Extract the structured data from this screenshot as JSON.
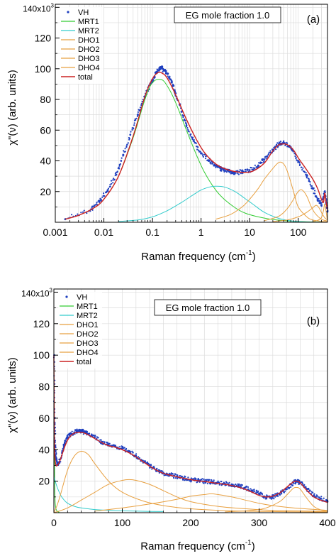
{
  "chart_data": [
    {
      "type": "scatter",
      "panel_label": "(a)",
      "annotation": "EG mole fraction 1.0",
      "xlabel": "Raman frequency (cm",
      "xlabel_sup": "-1",
      "xlabel_close": ")",
      "ylabel": "χ\"(ν) (arb. units)",
      "xscale": "log",
      "xlim": [
        0.001,
        400
      ],
      "ylim": [
        0,
        142000
      ],
      "xticks": [
        0.001,
        0.01,
        0.1,
        1,
        10,
        100
      ],
      "xtick_labels": [
        "0.001",
        "0.01",
        "0.1",
        "1",
        "10",
        "100"
      ],
      "yticks": [
        20000,
        40000,
        60000,
        80000,
        100000,
        120000
      ],
      "ytick_labels": [
        "20",
        "40",
        "60",
        "80",
        "100",
        "120"
      ],
      "ytop_label": "140x10",
      "ytop_sup": "3",
      "grid": true,
      "legend_position": "top-left",
      "legend": [
        "VH",
        "MRT1",
        "MRT2",
        "DHO1",
        "DHO2",
        "DHO3",
        "DHO4",
        "total"
      ],
      "series": [
        {
          "name": "VH",
          "marker": "dots",
          "color": "#1f3fbf",
          "x": [
            0.0016,
            0.0055,
            0.0082,
            0.012,
            0.018,
            0.025,
            0.035,
            0.05,
            0.07,
            0.09,
            0.11,
            0.13,
            0.15,
            0.17,
            0.2,
            0.25,
            0.3,
            0.4,
            0.5,
            0.7,
            1,
            1.5,
            2,
            2.5,
            3,
            4,
            5,
            7,
            10,
            15,
            20,
            30,
            40,
            50,
            70,
            100,
            150,
            200,
            250,
            300,
            350,
            380,
            400
          ],
          "y": [
            2000,
            8500,
            14000,
            21000,
            31000,
            44000,
            57000,
            70000,
            82000,
            90000,
            95000,
            99000,
            101000,
            99000,
            97000,
            91000,
            84000,
            72000,
            63000,
            53000,
            45000,
            40000,
            37000,
            35000,
            34000,
            33000,
            32000,
            33000,
            34000,
            37000,
            41000,
            47000,
            51000,
            52000,
            49000,
            40000,
            30000,
            22000,
            15000,
            11000,
            20000,
            13000,
            7000
          ]
        },
        {
          "name": "MRT1",
          "color": "#33cc33",
          "x": [
            0.0016,
            0.003,
            0.006,
            0.01,
            0.02,
            0.04,
            0.07,
            0.1,
            0.15,
            0.2,
            0.3,
            0.5,
            0.8,
            1.2,
            2,
            3,
            5,
            8,
            15,
            30,
            60,
            100,
            200,
            400
          ],
          "y": [
            2000,
            4500,
            9000,
            15000,
            30000,
            55000,
            80000,
            91000,
            93000,
            89000,
            78000,
            60000,
            44000,
            32000,
            21000,
            15000,
            9500,
            6000,
            3500,
            1800,
            900,
            500,
            200,
            100
          ]
        },
        {
          "name": "MRT2",
          "color": "#33cccc",
          "x": [
            0.02,
            0.05,
            0.1,
            0.2,
            0.4,
            0.7,
            1,
            1.5,
            2,
            3,
            5,
            8,
            12,
            20,
            40,
            80,
            150,
            400
          ],
          "y": [
            500,
            1500,
            3500,
            7500,
            13000,
            18000,
            21000,
            23000,
            23500,
            23000,
            20000,
            15500,
            11500,
            6500,
            2500,
            700,
            200,
            50
          ]
        },
        {
          "name": "DHO1",
          "color": "#e8a040",
          "x": [
            2,
            4,
            7,
            10,
            15,
            20,
            30,
            40,
            50,
            60,
            80,
            100,
            150,
            200,
            300,
            400
          ],
          "y": [
            2000,
            5000,
            10000,
            15000,
            22000,
            28000,
            35000,
            39000,
            38000,
            33000,
            20000,
            10000,
            3500,
            1500,
            600,
            300
          ]
        },
        {
          "name": "DHO2",
          "color": "#e8a040",
          "x": [
            20,
            40,
            60,
            80,
            100,
            120,
            150,
            180,
            220,
            300,
            400
          ],
          "y": [
            1000,
            4000,
            9000,
            15000,
            20000,
            21000,
            17000,
            11000,
            6000,
            2000,
            800
          ]
        },
        {
          "name": "DHO3",
          "color": "#e8a040",
          "x": [
            30,
            60,
            100,
            150,
            200,
            230,
            260,
            300,
            350,
            400
          ],
          "y": [
            500,
            1500,
            3500,
            6500,
            9500,
            11000,
            10000,
            6500,
            3000,
            1500
          ]
        },
        {
          "name": "DHO4",
          "color": "#e8a040",
          "x": [
            200,
            250,
            300,
            330,
            350,
            370,
            390,
            400
          ],
          "y": [
            500,
            1200,
            3000,
            7500,
            12000,
            8000,
            3000,
            1500
          ]
        },
        {
          "name": "total",
          "color": "#cc2222",
          "x": [
            0.0016,
            0.003,
            0.006,
            0.01,
            0.02,
            0.04,
            0.07,
            0.1,
            0.13,
            0.16,
            0.2,
            0.3,
            0.5,
            0.8,
            1.2,
            2,
            3,
            5,
            8,
            12,
            20,
            30,
            40,
            50,
            60,
            80,
            100,
            150,
            200,
            250,
            300,
            330,
            350,
            370,
            400
          ],
          "y": [
            2000,
            4500,
            9000,
            15000,
            30000,
            56000,
            82000,
            93500,
            97500,
            97000,
            94000,
            83000,
            67000,
            54000,
            45000,
            38000,
            35000,
            33000,
            32500,
            33500,
            38500,
            46500,
            50500,
            51000,
            50500,
            47000,
            42000,
            34000,
            28000,
            22000,
            15000,
            13000,
            19000,
            14000,
            8000
          ]
        }
      ]
    },
    {
      "type": "scatter",
      "panel_label": "(b)",
      "annotation": "EG mole fraction 1.0",
      "xlabel": "Raman frequency (cm",
      "xlabel_sup": "-1",
      "xlabel_close": ")",
      "ylabel": "χ\"(ν) (arb. units)",
      "xscale": "linear",
      "xlim": [
        0,
        400
      ],
      "ylim": [
        0,
        142000
      ],
      "xticks": [
        0,
        100,
        200,
        300,
        400
      ],
      "xtick_labels": [
        "0",
        "100",
        "200",
        "300",
        "400"
      ],
      "yticks": [
        20000,
        40000,
        60000,
        80000,
        100000,
        120000
      ],
      "ytick_labels": [
        "20",
        "40",
        "60",
        "80",
        "100",
        "120"
      ],
      "ytop_label": "140x10",
      "ytop_sup": "3",
      "grid": true,
      "legend_position": "top-left",
      "legend": [
        "VH",
        "MRT1",
        "MRT2",
        "DHO1",
        "DHO2",
        "DHO3",
        "DHO4",
        "total"
      ],
      "series": [
        {
          "name": "VH",
          "marker": "dots",
          "color": "#1f3fbf",
          "x": [
            0.5,
            1,
            2,
            3,
            5,
            8,
            12,
            16,
            20,
            25,
            30,
            35,
            40,
            45,
            50,
            60,
            70,
            80,
            90,
            100,
            110,
            120,
            130,
            140,
            150,
            160,
            170,
            180,
            190,
            200,
            210,
            220,
            230,
            240,
            250,
            260,
            270,
            280,
            290,
            300,
            310,
            320,
            330,
            340,
            350,
            355,
            360,
            370,
            380,
            390,
            400
          ],
          "y": [
            100000,
            60000,
            42000,
            35000,
            31000,
            32000,
            38000,
            44000,
            48000,
            50000,
            51000,
            52000,
            52000,
            51000,
            50000,
            48000,
            45000,
            43000,
            42000,
            41000,
            39000,
            36000,
            33000,
            30000,
            27000,
            25000,
            24000,
            23000,
            22000,
            21000,
            20500,
            20000,
            19500,
            19000,
            18500,
            18000,
            17000,
            16000,
            14000,
            12000,
            10000,
            10000,
            12000,
            15000,
            19000,
            20000,
            19000,
            15000,
            11000,
            9000,
            7000
          ]
        },
        {
          "name": "MRT1",
          "color": "#33cc33",
          "x": [
            0,
            0.5,
            1,
            1.5,
            2,
            3,
            5,
            8
          ],
          "y": [
            100000,
            50000,
            25000,
            12000,
            6000,
            2500,
            800,
            300
          ]
        },
        {
          "name": "MRT2",
          "color": "#33cccc",
          "x": [
            0,
            2,
            5,
            10,
            15,
            20,
            30,
            40,
            60,
            80,
            100,
            130,
            160
          ],
          "y": [
            23000,
            20000,
            16000,
            11000,
            8000,
            6000,
            4000,
            3000,
            2000,
            1500,
            1200,
            900,
            700
          ]
        },
        {
          "name": "DHO1",
          "color": "#e8a040",
          "x": [
            0,
            5,
            10,
            20,
            30,
            40,
            50,
            60,
            80,
            100,
            130,
            160,
            200,
            250,
            300,
            400
          ],
          "y": [
            0,
            5000,
            12000,
            27000,
            36000,
            39000,
            37000,
            31000,
            20000,
            13000,
            7500,
            4500,
            2500,
            1300,
            800,
            400
          ]
        },
        {
          "name": "DHO2",
          "color": "#e8a040",
          "x": [
            0,
            20,
            40,
            60,
            80,
            100,
            110,
            120,
            140,
            160,
            180,
            200,
            240,
            280,
            320,
            400
          ],
          "y": [
            0,
            3000,
            8000,
            13000,
            18000,
            20500,
            21000,
            20500,
            18000,
            14000,
            10000,
            7000,
            4000,
            2500,
            1500,
            800
          ]
        },
        {
          "name": "DHO3",
          "color": "#e8a040",
          "x": [
            60,
            100,
            140,
            180,
            200,
            220,
            230,
            240,
            260,
            280,
            300,
            320,
            350,
            400
          ],
          "y": [
            1000,
            3000,
            5500,
            8500,
            10500,
            11500,
            12000,
            11500,
            10000,
            8000,
            6000,
            4500,
            3000,
            1500
          ]
        },
        {
          "name": "DHO4",
          "color": "#e8a040",
          "x": [
            250,
            290,
            310,
            330,
            340,
            350,
            355,
            360,
            370,
            380,
            390,
            400
          ],
          "y": [
            500,
            1500,
            3000,
            7000,
            11000,
            15500,
            16000,
            15000,
            9000,
            4000,
            1800,
            800
          ]
        },
        {
          "name": "total",
          "color": "#cc2222",
          "x": [
            0,
            0.5,
            1,
            2,
            3,
            5,
            8,
            12,
            16,
            20,
            25,
            30,
            35,
            40,
            45,
            50,
            60,
            70,
            80,
            90,
            100,
            110,
            120,
            130,
            140,
            150,
            160,
            170,
            180,
            190,
            200,
            210,
            220,
            230,
            240,
            250,
            260,
            270,
            280,
            290,
            300,
            310,
            320,
            330,
            340,
            350,
            355,
            360,
            370,
            380,
            390,
            400
          ],
          "y": [
            100000,
            60000,
            40000,
            33000,
            30000,
            30000,
            32000,
            37000,
            42000,
            46000,
            49000,
            50500,
            51000,
            51000,
            50500,
            49500,
            47000,
            44500,
            42500,
            41500,
            40000,
            38000,
            35500,
            32500,
            29500,
            27000,
            25000,
            23800,
            22800,
            21800,
            21000,
            20300,
            19800,
            19200,
            18600,
            18000,
            17200,
            16200,
            14800,
            13000,
            11000,
            10000,
            10500,
            12500,
            16000,
            19500,
            20000,
            19000,
            14000,
            10000,
            8000,
            6500
          ]
        }
      ]
    }
  ]
}
